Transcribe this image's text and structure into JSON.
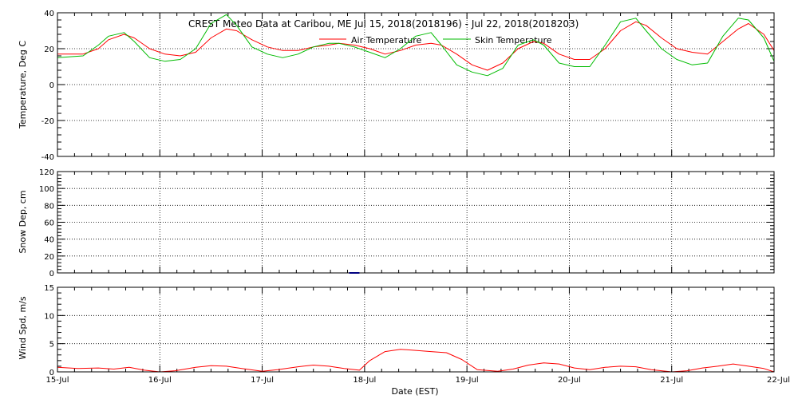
{
  "chart_data": {
    "type": "line",
    "title": "CREST Meteo Data at Caribou, ME   Jul 15, 2018(2018196) - Jul 22, 2018(2018203)",
    "x_unit": "date",
    "x_start": "15-Jul",
    "x_ticks": [
      "15-Jul",
      "16-Jul",
      "17-Jul",
      "18-Jul",
      "19-Jul",
      "20-Jul",
      "21-Jul",
      "22-Jul"
    ],
    "xlabel": "Date (EST)",
    "grid": true,
    "colors": {
      "air": "#ff0000",
      "skin": "#00bb00",
      "snow": "#0000ff",
      "wind": "#ff0000",
      "axis": "#000000",
      "grid": "#000000"
    },
    "panels": [
      {
        "id": "temperature",
        "ylabel": "Temperature, Deg C",
        "ylim": [
          -40,
          40
        ],
        "yticks": [
          -40,
          -20,
          0,
          20,
          40
        ],
        "legend": {
          "placement": "top-center",
          "entries": [
            "Air Temperature",
            "Skin Temperature"
          ]
        },
        "series": [
          {
            "name": "Air Temperature",
            "color": "#ff0000",
            "x_days": [
              0,
              0.25,
              0.4,
              0.5,
              0.65,
              0.75,
              0.9,
              1.05,
              1.2,
              1.35,
              1.5,
              1.65,
              1.75,
              1.9,
              2.05,
              2.2,
              2.35,
              2.5,
              2.65,
              2.75,
              2.9,
              3.05,
              3.2,
              3.35,
              3.5,
              3.65,
              3.75,
              3.9,
              4.05,
              4.2,
              4.35,
              4.5,
              4.65,
              4.75,
              4.9,
              5.05,
              5.2,
              5.35,
              5.5,
              5.65,
              5.75,
              5.9,
              6.05,
              6.2,
              6.35,
              6.5,
              6.65,
              6.75,
              6.9,
              7.0
            ],
            "y": [
              17,
              17,
              20,
              25,
              28,
              26,
              20,
              17,
              16,
              18,
              26,
              31,
              30,
              25,
              21,
              19,
              19,
              21,
              22,
              23,
              22,
              20,
              17,
              19,
              22,
              23,
              22,
              17,
              11,
              8,
              12,
              20,
              24,
              23,
              17,
              14,
              14,
              20,
              30,
              35,
              33,
              26,
              20,
              18,
              17,
              24,
              31,
              34,
              28,
              19
            ]
          },
          {
            "name": "Skin Temperature",
            "color": "#00bb00",
            "x_days": [
              0,
              0.25,
              0.4,
              0.5,
              0.65,
              0.75,
              0.9,
              1.05,
              1.2,
              1.35,
              1.5,
              1.65,
              1.75,
              1.9,
              2.05,
              2.2,
              2.35,
              2.5,
              2.65,
              2.75,
              2.9,
              3.05,
              3.2,
              3.35,
              3.5,
              3.65,
              3.75,
              3.9,
              4.05,
              4.2,
              4.35,
              4.5,
              4.65,
              4.75,
              4.9,
              5.05,
              5.2,
              5.35,
              5.5,
              5.65,
              5.75,
              5.9,
              6.05,
              6.2,
              6.35,
              6.5,
              6.65,
              6.75,
              6.9,
              7.0
            ],
            "y": [
              15,
              16,
              22,
              27,
              29,
              24,
              15,
              13,
              14,
              20,
              34,
              39,
              33,
              21,
              17,
              15,
              17,
              21,
              23,
              23,
              21,
              18,
              15,
              20,
              27,
              29,
              22,
              11,
              7,
              5,
              9,
              22,
              25,
              22,
              12,
              10,
              10,
              22,
              35,
              37,
              30,
              20,
              14,
              11,
              12,
              27,
              37,
              36,
              26,
              13
            ]
          }
        ]
      },
      {
        "id": "snow",
        "ylabel": "Snow Dep, cm",
        "ylim": [
          0,
          120
        ],
        "yticks": [
          0,
          20,
          40,
          60,
          80,
          100,
          120
        ],
        "series": [
          {
            "color": "#0000ff",
            "x_days": [
              2.85,
              2.95
            ],
            "y": [
              0,
              0
            ]
          }
        ]
      },
      {
        "id": "wind",
        "ylabel": "Wind Spd, m/s",
        "ylim": [
          0,
          15
        ],
        "yticks": [
          0,
          5,
          10,
          15
        ],
        "series": [
          {
            "color": "#ff0000",
            "x_days": [
              0,
              0.2,
              0.4,
              0.55,
              0.7,
              0.85,
              1.0,
              1.15,
              1.35,
              1.5,
              1.65,
              1.8,
              2.0,
              2.15,
              2.35,
              2.5,
              2.65,
              2.8,
              2.95,
              3.05,
              3.2,
              3.35,
              3.5,
              3.65,
              3.8,
              3.95,
              4.1,
              4.3,
              4.45,
              4.6,
              4.75,
              4.9,
              5.05,
              5.2,
              5.35,
              5.5,
              5.65,
              5.8,
              6.0,
              6.15,
              6.3,
              6.45,
              6.6,
              6.75,
              6.9,
              7.0
            ],
            "y": [
              0.8,
              0.6,
              0.7,
              0.5,
              0.8,
              0.3,
              0.0,
              0.2,
              0.8,
              1.1,
              1.0,
              0.6,
              0.1,
              0.4,
              0.9,
              1.2,
              1.0,
              0.6,
              0.3,
              2.0,
              3.6,
              4.0,
              3.8,
              3.6,
              3.4,
              2.2,
              0.4,
              0.1,
              0.5,
              1.2,
              1.6,
              1.4,
              0.7,
              0.4,
              0.8,
              1.0,
              0.9,
              0.4,
              0.0,
              0.2,
              0.7,
              1.0,
              1.4,
              1.0,
              0.6,
              0.0
            ]
          }
        ]
      }
    ]
  }
}
